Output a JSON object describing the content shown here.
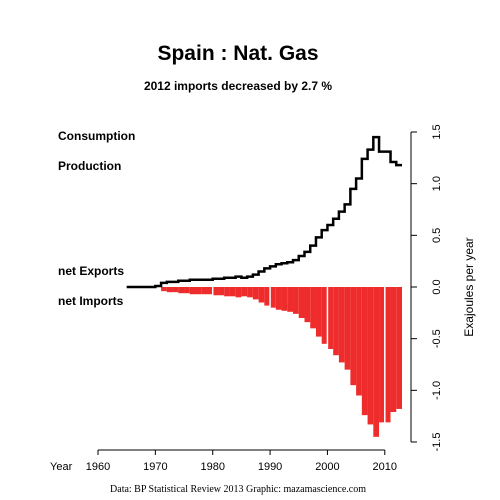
{
  "chart_data": {
    "type": "step-line-and-bar",
    "title": "Spain :  Nat. Gas",
    "subtitle": "2012 imports decreased by 2.7 %",
    "ylabel": "Exajoules per year",
    "xlabel": "Year",
    "source": "Data: BP Statistical Review 2013    Graphic: mazamascience.com",
    "xlim": [
      1960,
      2013
    ],
    "ylim": [
      -1.5,
      1.5
    ],
    "x_ticks": [
      1960,
      1970,
      1980,
      1990,
      2000,
      2010
    ],
    "y_ticks": [
      -1.5,
      -1.0,
      -0.5,
      0.0,
      0.5,
      1.0,
      1.5
    ],
    "y_tick_labels": [
      "-1.5",
      "-1.0",
      "-0.5",
      "0.0",
      "0.5",
      "1.0",
      "1.5"
    ],
    "legend": [
      {
        "label": "Consumption",
        "color": "#000000"
      },
      {
        "label": "Production",
        "color": "#777777"
      },
      {
        "label": "net Exports",
        "color": "#1a8a5a"
      },
      {
        "label": "net Imports",
        "color": "#ee2c2c"
      }
    ],
    "years": [
      1965,
      1966,
      1967,
      1968,
      1969,
      1970,
      1971,
      1972,
      1973,
      1974,
      1975,
      1976,
      1977,
      1978,
      1979,
      1980,
      1981,
      1982,
      1983,
      1984,
      1985,
      1986,
      1987,
      1988,
      1989,
      1990,
      1991,
      1992,
      1993,
      1994,
      1995,
      1996,
      1997,
      1998,
      1999,
      2000,
      2001,
      2002,
      2003,
      2004,
      2005,
      2006,
      2007,
      2008,
      2009,
      2010,
      2011,
      2012
    ],
    "series": [
      {
        "name": "Consumption",
        "color": "#000000",
        "values": [
          0.0,
          0.0,
          0.0,
          0.0,
          0.0,
          0.01,
          0.04,
          0.05,
          0.05,
          0.06,
          0.06,
          0.07,
          0.07,
          0.07,
          0.07,
          0.08,
          0.08,
          0.09,
          0.09,
          0.1,
          0.09,
          0.1,
          0.12,
          0.15,
          0.18,
          0.2,
          0.22,
          0.23,
          0.24,
          0.26,
          0.3,
          0.34,
          0.4,
          0.48,
          0.55,
          0.6,
          0.66,
          0.73,
          0.8,
          0.95,
          1.05,
          1.24,
          1.33,
          1.45,
          1.31,
          1.31,
          1.21,
          1.18
        ]
      },
      {
        "name": "net Imports",
        "color": "#ee2c2c",
        "values": [
          0.0,
          0.0,
          0.0,
          0.0,
          0.0,
          0.0,
          -0.04,
          -0.05,
          -0.05,
          -0.06,
          -0.06,
          -0.07,
          -0.07,
          -0.07,
          -0.07,
          -0.08,
          -0.08,
          -0.09,
          -0.09,
          -0.1,
          -0.09,
          -0.1,
          -0.12,
          -0.15,
          -0.18,
          -0.2,
          -0.22,
          -0.23,
          -0.24,
          -0.26,
          -0.3,
          -0.34,
          -0.4,
          -0.48,
          -0.55,
          -0.6,
          -0.66,
          -0.73,
          -0.8,
          -0.95,
          -1.05,
          -1.24,
          -1.33,
          -1.45,
          -1.31,
          -1.31,
          -1.21,
          -1.18
        ]
      }
    ]
  }
}
